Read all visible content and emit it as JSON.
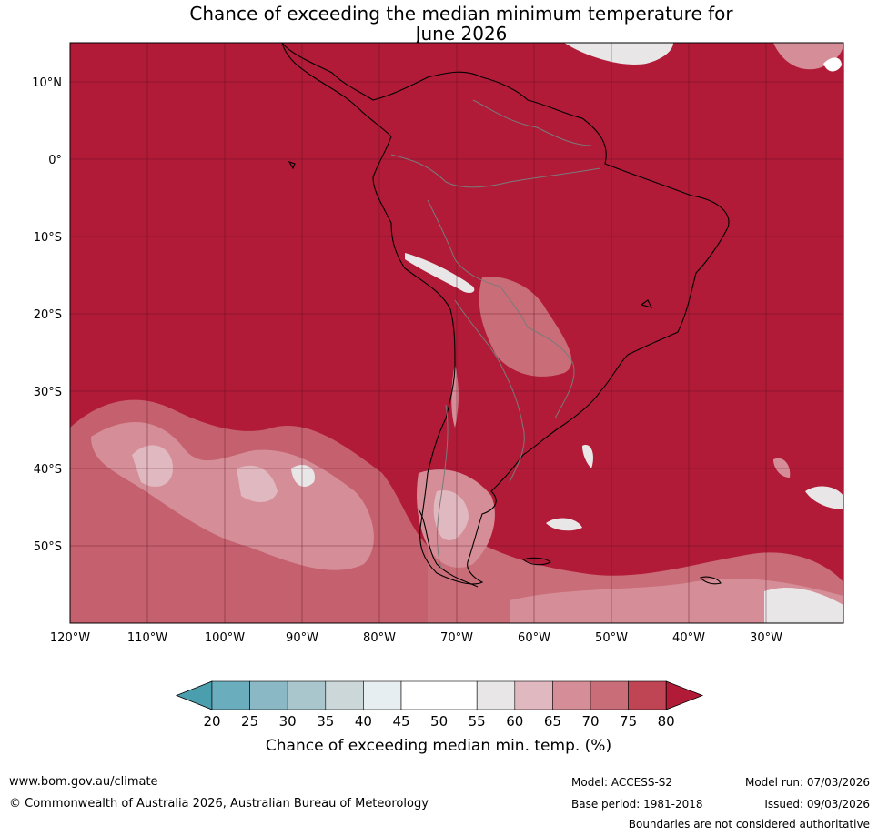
{
  "title_line1": "Chance of exceeding the median minimum temperature for",
  "title_line2": "June 2026",
  "map": {
    "lat_labels": [
      "10°N",
      "0°",
      "10°S",
      "20°S",
      "30°S",
      "40°S",
      "50°S"
    ],
    "lon_labels": [
      "120°W",
      "110°W",
      "100°W",
      "90°W",
      "80°W",
      "70°W",
      "60°W",
      "50°W",
      "40°W",
      "30°W"
    ],
    "background_color": "#b11b38"
  },
  "colorbar": {
    "tick_labels": [
      "20",
      "25",
      "30",
      "35",
      "40",
      "45",
      "50",
      "55",
      "60",
      "65",
      "70",
      "75",
      "80"
    ],
    "colors": [
      "#6aaebe",
      "#8bb8c5",
      "#a9c6cd",
      "#cbd7d9",
      "#e7eef1",
      "#ffffff",
      "#ffffff",
      "#e8e6e7",
      "#e0b8bf",
      "#d58e98",
      "#c96d78",
      "#bf4555"
    ],
    "under_color": "#4b9eae",
    "over_color": "#b11b38",
    "label": "Chance of exceeding median min. temp. (%)"
  },
  "footer": {
    "website": "www.bom.gov.au/climate",
    "copyright": "© Commonwealth of Australia 2026, Australian Bureau of Meteorology",
    "model": "Model: ACCESS-S2",
    "base_period": "Base period: 1981-2018",
    "model_run": "Model run: 07/03/2026",
    "issued": "Issued: 09/03/2026",
    "disclaimer": "Boundaries are not considered authoritative"
  }
}
